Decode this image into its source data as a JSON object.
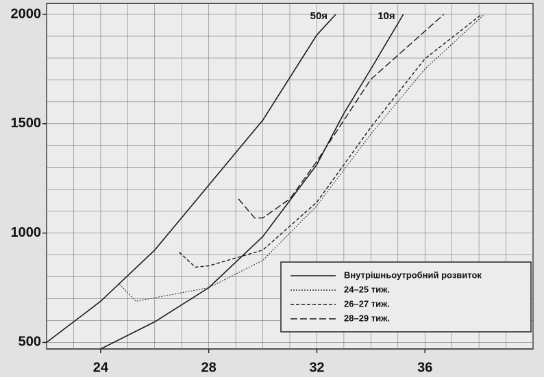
{
  "chart_data": {
    "type": "line",
    "xlim": [
      22,
      40
    ],
    "ylim": [
      470,
      2050
    ],
    "xticks": [
      24,
      28,
      32,
      36
    ],
    "yticks": [
      500,
      1000,
      1500,
      2000
    ],
    "xgrid": [
      22,
      23,
      24,
      25,
      26,
      27,
      28,
      29,
      30,
      31,
      32,
      33,
      34,
      35,
      36,
      37,
      38,
      39,
      40
    ],
    "ygrid": [
      500,
      600,
      700,
      800,
      900,
      1000,
      1100,
      1200,
      1300,
      1400,
      1500,
      1600,
      1700,
      1800,
      1900,
      2000
    ],
    "grid": true,
    "intrauterine_label": "Внутрішньоутробний розвиток",
    "series": [
      {
        "name": "50я",
        "color": "#1a1a1a",
        "dash": "solid",
        "in_legend": false,
        "x": [
          22,
          24,
          26,
          28,
          30,
          32,
          32.7
        ],
        "values": [
          500,
          688,
          922,
          1219,
          1516,
          1906,
          2000
        ]
      },
      {
        "name": "10я",
        "color": "#1a1a1a",
        "dash": "solid",
        "in_legend": false,
        "x": [
          24,
          26,
          28,
          30,
          32,
          33,
          34,
          35.2
        ],
        "values": [
          470,
          594,
          750,
          984,
          1313,
          1547,
          1750,
          2000
        ]
      },
      {
        "name": "24–25 тиж.",
        "color": "#333333",
        "dash": "dotted",
        "in_legend": true,
        "x": [
          24.7,
          25.3,
          28,
          30,
          32,
          34,
          36,
          38.2
        ],
        "values": [
          766,
          688,
          750,
          875,
          1125,
          1453,
          1750,
          2000
        ]
      },
      {
        "name": "26–27 тиж.",
        "color": "#1a1a1a",
        "dash": "short",
        "in_legend": true,
        "x": [
          26.9,
          27.5,
          28,
          30,
          32,
          34,
          36,
          38.1
        ],
        "values": [
          913,
          844,
          850,
          922,
          1141,
          1484,
          1797,
          2000
        ]
      },
      {
        "name": "28–29 тиж.",
        "color": "#1a1a1a",
        "dash": "long",
        "in_legend": true,
        "x": [
          29.1,
          29.7,
          30,
          31,
          32,
          34,
          36.7
        ],
        "values": [
          1156,
          1069,
          1069,
          1156,
          1328,
          1703,
          2000
        ]
      }
    ]
  }
}
